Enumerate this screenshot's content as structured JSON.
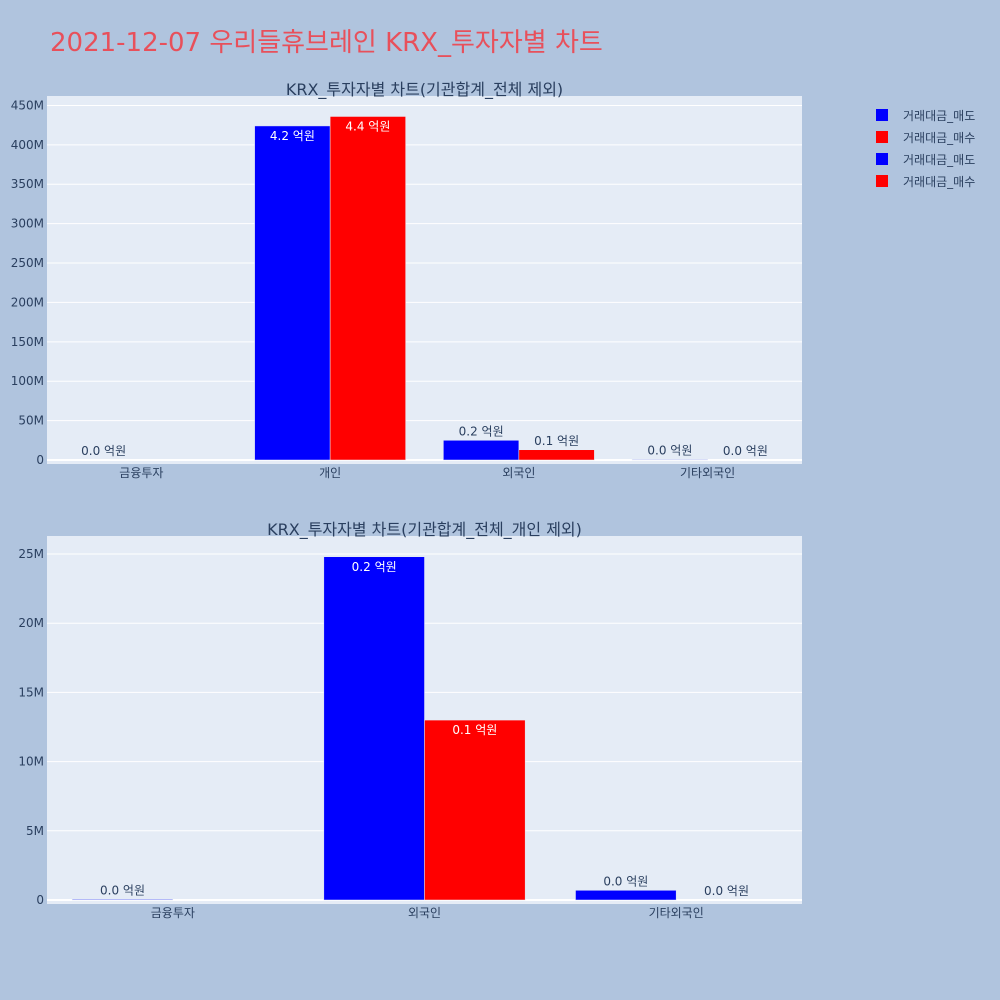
{
  "title": "2021-12-07 우리들휴브레인 KRX_투자자별 차트",
  "legend": {
    "placement": "top-right",
    "items": [
      {
        "label": "거래대금_매도",
        "color": "#0000ff"
      },
      {
        "label": "거래대금_매수",
        "color": "#ff0000"
      },
      {
        "label": "거래대금_매도",
        "color": "#0000ff"
      },
      {
        "label": "거래대금_매수",
        "color": "#ff0000"
      }
    ]
  },
  "chart_data": [
    {
      "type": "bar",
      "title": "KRX_투자자별 차트(기관합계_전체 제외)",
      "categories": [
        "금융투자",
        "개인",
        "외국인",
        "기타외국인"
      ],
      "series": [
        {
          "name": "거래대금_매도",
          "color": "#0000ff",
          "values": [
            0,
            424000000,
            25000000,
            700000
          ],
          "labels": [
            "0.0 억원",
            "4.2 억원",
            "0.2 억원",
            "0.0 억원"
          ]
        },
        {
          "name": "거래대금_매수",
          "color": "#ff0000",
          "values": [
            0,
            436000000,
            13000000,
            0
          ],
          "labels": [
            "",
            "4.4 억원",
            "0.1 억원",
            "0.0 억원"
          ]
        }
      ],
      "ylim": [
        0,
        462000000
      ],
      "yticks": [
        0,
        50000000,
        100000000,
        150000000,
        200000000,
        250000000,
        300000000,
        350000000,
        400000000,
        450000000
      ],
      "ytick_labels": [
        "0",
        "50M",
        "100M",
        "150M",
        "200M",
        "250M",
        "300M",
        "350M",
        "400M",
        "450M"
      ],
      "grid": true
    },
    {
      "type": "bar",
      "title": "KRX_투자자별 차트(기관합계_전체_개인 제외)",
      "categories": [
        "금융투자",
        "외국인",
        "기타외국인"
      ],
      "series": [
        {
          "name": "거래대금_매도",
          "color": "#0000ff",
          "values": [
            50000,
            24800000,
            700000
          ],
          "labels": [
            "0.0 억원",
            "0.2 억원",
            "0.0 억원"
          ]
        },
        {
          "name": "거래대금_매수",
          "color": "#ff0000",
          "values": [
            0,
            13000000,
            0
          ],
          "labels": [
            "",
            "0.1 억원",
            "0.0 억원"
          ]
        }
      ],
      "ylim": [
        0,
        26300000
      ],
      "yticks": [
        0,
        5000000,
        10000000,
        15000000,
        20000000,
        25000000
      ],
      "ytick_labels": [
        "0",
        "5M",
        "10M",
        "15M",
        "20M",
        "25M"
      ],
      "grid": true
    }
  ]
}
